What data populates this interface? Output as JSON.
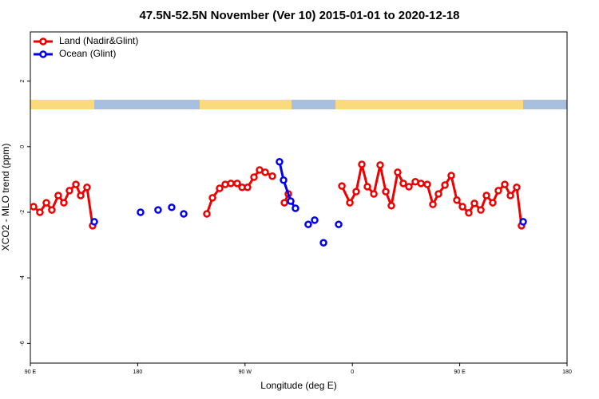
{
  "chart_data": {
    "type": "line",
    "title": "47.5N-52.5N November (Ver 10)   2015-01-01 to 2020-12-18",
    "x_label": "Longitude (deg E)",
    "y_label": "XCO2 - MLO trend (ppm)",
    "xlim": [
      90,
      540
    ],
    "ylim": [
      -6.6,
      3.5
    ],
    "xticks": [
      {
        "value": 90,
        "label": "90 E"
      },
      180,
      {
        "value": 270,
        "label": "90 W"
      },
      {
        "value": 360,
        "label": "0"
      },
      {
        "value": 450,
        "label": "90 E"
      },
      {
        "value": 540,
        "label": "180"
      }
    ],
    "yticks": [
      2,
      0,
      -2,
      -4,
      -6
    ],
    "legend": "top-left",
    "series": [
      {
        "name": "Land (Nadir&Glint)",
        "color": "#ee0000",
        "x": [
          92.7,
          98,
          103.4,
          108,
          113.4,
          118.1,
          122.8,
          128.2,
          132.2,
          137.5,
          142.2,
          null,
          238,
          242.7,
          248.7,
          253.4,
          258.1,
          263.4,
          267.5,
          272.1,
          277.5,
          282.2,
          286.9,
          292.9,
          null,
          303,
          306.3,
          null,
          351.2,
          357.9,
          363.2,
          367.9,
          372.6,
          378,
          383.3,
          388,
          392.7,
          398,
          402.7,
          407.4,
          412.8,
          417.5,
          422.8,
          427.5,
          432.2,
          437.6,
          442.9,
          447.6,
          452.3,
          457.6,
          462.3,
          467.7,
          472.4,
          477.7,
          482.4,
          487.8,
          492.5,
          497.8,
          501.8
        ],
        "values": [
          -1.83,
          -2.0,
          -1.71,
          -1.93,
          -1.49,
          -1.71,
          -1.34,
          -1.15,
          -1.49,
          -1.24,
          -2.41,
          null,
          -2.05,
          -1.56,
          -1.27,
          -1.15,
          -1.12,
          -1.12,
          -1.24,
          -1.24,
          -0.93,
          -0.71,
          -0.78,
          -0.9,
          null,
          -1.71,
          -1.44,
          null,
          -1.2,
          -1.71,
          -1.37,
          -0.54,
          -1.22,
          -1.44,
          -0.56,
          -1.37,
          -1.8,
          -0.78,
          -1.12,
          -1.22,
          -1.07,
          -1.12,
          -1.15,
          -1.76,
          -1.44,
          -1.17,
          -0.88,
          -1.63,
          -1.83,
          -2.02,
          -1.73,
          -1.93,
          -1.49,
          -1.71,
          -1.34,
          -1.15,
          -1.49,
          -1.24,
          -2.41
        ]
      },
      {
        "name": "Ocean (Glint)",
        "color": "#0000ee",
        "x": [
          143.6,
          null,
          182.4,
          null,
          197.1,
          null,
          208.5,
          null,
          218.6,
          null,
          298.9,
          302.3,
          308.3,
          312.3,
          null,
          323,
          null,
          328.4,
          null,
          335.8,
          null,
          348.5,
          null,
          503.2
        ],
        "values": [
          -2.29,
          null,
          -2.0,
          null,
          -1.93,
          null,
          -1.85,
          null,
          -2.05,
          null,
          -0.46,
          -1.02,
          -1.66,
          -1.88,
          null,
          -2.37,
          null,
          -2.24,
          null,
          -2.93,
          null,
          -2.37,
          null,
          -2.29
        ]
      }
    ]
  }
}
